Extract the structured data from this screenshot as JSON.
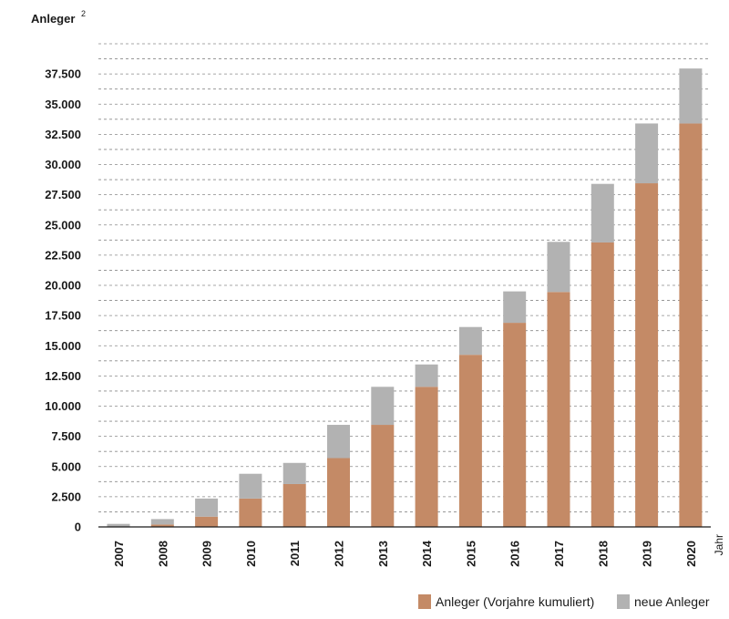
{
  "chart_data": {
    "type": "bar",
    "stacked": true,
    "ylabel": "Anleger",
    "ylabel_superscript": "2",
    "xlabel": "Jahr",
    "categories": [
      "2007",
      "2008",
      "2009",
      "2010",
      "2011",
      "2012",
      "2013",
      "2014",
      "2015",
      "2016",
      "2017",
      "2018",
      "2019",
      "2020"
    ],
    "series": [
      {
        "name": "Anleger (Vorjahre kumuliert)",
        "color": "#c48a66",
        "values": [
          0,
          200,
          850,
          2350,
          3550,
          5700,
          8450,
          11600,
          14250,
          16900,
          19450,
          23550,
          28450,
          33400
        ]
      },
      {
        "name": "neue Anleger",
        "color": "#b2b2b2",
        "values": [
          250,
          450,
          1500,
          2050,
          1750,
          2750,
          3150,
          1850,
          2300,
          2600,
          4150,
          4850,
          4950,
          4550
        ]
      }
    ],
    "ylim": [
      0,
      40000
    ],
    "yticks": [
      0,
      2500,
      5000,
      7500,
      10000,
      12500,
      15000,
      17500,
      20000,
      22500,
      25000,
      27500,
      30000,
      32500,
      35000,
      37500
    ],
    "ytick_labels": [
      "0",
      "2.500",
      "5.000",
      "7.500",
      "10.000",
      "12.500",
      "15.000",
      "17.500",
      "20.000",
      "22.500",
      "25.000",
      "27.500",
      "30.000",
      "32.500",
      "35.000",
      "37.500"
    ],
    "grid": true,
    "legend_position": "bottom-right"
  }
}
